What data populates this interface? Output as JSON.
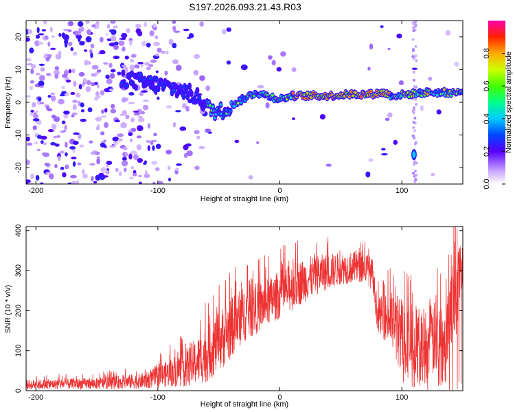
{
  "title": "S197.2026.093.21.43.R03",
  "chart_data": [
    {
      "type": "heatmap",
      "name": "spectrogram",
      "xlabel": "Height of straight line (km)",
      "ylabel": "Frequency (Hz)",
      "xlim": [
        -208,
        150
      ],
      "ylim": [
        -25,
        25
      ],
      "xticks": [
        -200,
        -100,
        0,
        100
      ],
      "yticks": [
        -20,
        -10,
        0,
        10,
        20
      ],
      "colorbar": {
        "label": "Normalized spectral amplitude",
        "range": [
          0,
          1
        ],
        "ticks": [
          "0.0",
          "0.2",
          "0.4",
          "0.6",
          "0.8"
        ]
      },
      "signal_track": [
        {
          "x": -125,
          "f": 7
        },
        {
          "x": -110,
          "f": 6
        },
        {
          "x": -95,
          "f": 5
        },
        {
          "x": -85,
          "f": 4
        },
        {
          "x": -75,
          "f": 3
        },
        {
          "x": -65,
          "f": 1
        },
        {
          "x": -58,
          "f": -2
        },
        {
          "x": -50,
          "f": -3
        },
        {
          "x": -40,
          "f": -1
        },
        {
          "x": -30,
          "f": 1
        },
        {
          "x": -20,
          "f": 3
        },
        {
          "x": -10,
          "f": 2
        },
        {
          "x": 0,
          "f": 1
        },
        {
          "x": 10,
          "f": 2
        },
        {
          "x": 20,
          "f": 2
        },
        {
          "x": 40,
          "f": 2
        },
        {
          "x": 60,
          "f": 2.5
        },
        {
          "x": 75,
          "f": 2.5
        },
        {
          "x": 85,
          "f": 3
        },
        {
          "x": 92,
          "f": 2
        },
        {
          "x": 105,
          "f": 2.5
        },
        {
          "x": 120,
          "f": 3
        },
        {
          "x": 135,
          "f": 3
        },
        {
          "x": 150,
          "f": 3
        }
      ],
      "features": [
        {
          "x": 110,
          "f": -16,
          "label": "spot"
        }
      ]
    },
    {
      "type": "line",
      "name": "snr",
      "xlabel": "Height of straight line (km)",
      "ylabel": "SNR (10 * v/v)",
      "xlim": [
        -208,
        150
      ],
      "ylim": [
        0,
        410
      ],
      "xticks": [
        -200,
        -100,
        0,
        100
      ],
      "yticks": [
        0,
        100,
        200,
        300,
        400
      ],
      "color": "#ee3333",
      "envelope": [
        {
          "x": -208,
          "mean": 15,
          "spread": 12
        },
        {
          "x": -150,
          "mean": 18,
          "spread": 14
        },
        {
          "x": -110,
          "mean": 25,
          "spread": 20
        },
        {
          "x": -90,
          "mean": 45,
          "spread": 35
        },
        {
          "x": -75,
          "mean": 60,
          "spread": 50
        },
        {
          "x": -60,
          "mean": 90,
          "spread": 70
        },
        {
          "x": -45,
          "mean": 140,
          "spread": 80
        },
        {
          "x": -30,
          "mean": 190,
          "spread": 70
        },
        {
          "x": -10,
          "mean": 220,
          "spread": 60
        },
        {
          "x": 10,
          "mean": 260,
          "spread": 60
        },
        {
          "x": 30,
          "mean": 290,
          "spread": 50
        },
        {
          "x": 50,
          "mean": 305,
          "spread": 40
        },
        {
          "x": 70,
          "mean": 310,
          "spread": 40
        },
        {
          "x": 76,
          "mean": 290,
          "spread": 40
        },
        {
          "x": 80,
          "mean": 190,
          "spread": 40
        },
        {
          "x": 90,
          "mean": 180,
          "spread": 70
        },
        {
          "x": 100,
          "mean": 140,
          "spread": 100
        },
        {
          "x": 115,
          "mean": 110,
          "spread": 100
        },
        {
          "x": 135,
          "mean": 140,
          "spread": 90
        },
        {
          "x": 145,
          "mean": 250,
          "spread": 120
        },
        {
          "x": 150,
          "mean": 340,
          "spread": 60
        }
      ]
    }
  ]
}
